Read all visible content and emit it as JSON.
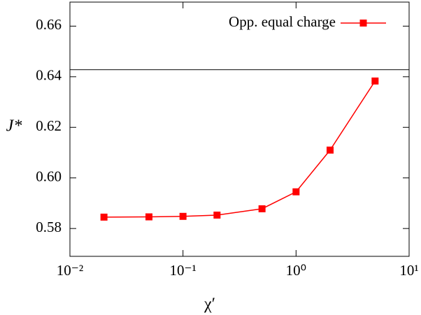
{
  "chart_data": {
    "type": "line",
    "x_label": "χ′",
    "y_label": "J*",
    "xscale": "log",
    "xlim": [
      0.01,
      10
    ],
    "xticks": [
      {
        "value": 0.01,
        "label": "10⁻²"
      },
      {
        "value": 0.1,
        "label": "10⁻¹"
      },
      {
        "value": 1,
        "label": "10⁰"
      },
      {
        "value": 10,
        "label": "10¹"
      }
    ],
    "ylim": [
      0.569,
      0.6695
    ],
    "yticks": [
      0.58,
      {
        "value": 0.6,
        "label": "0.60"
      },
      0.62,
      0.64,
      0.66
    ],
    "hline": 0.6428,
    "legend": "top-right",
    "x": [
      0.02,
      0.05,
      0.1,
      0.2,
      0.5,
      1,
      2,
      5
    ],
    "series": [
      {
        "name": "Opp. equal charge",
        "color": "#ff0000",
        "values": [
          0.5845,
          0.5846,
          0.5848,
          0.5853,
          0.5878,
          0.5945,
          0.611,
          0.6383
        ]
      }
    ]
  }
}
